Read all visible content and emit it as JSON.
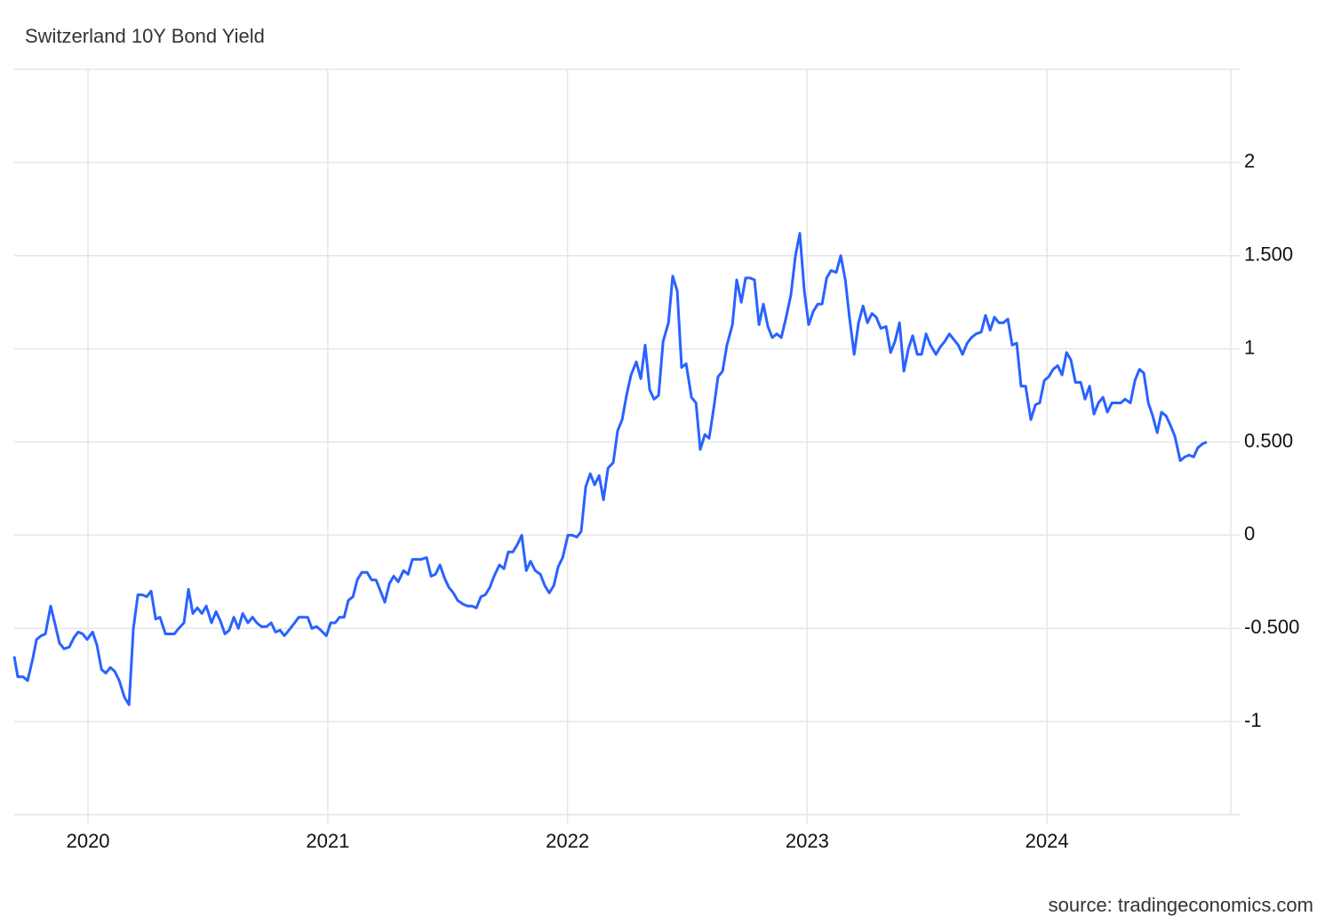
{
  "chart_data": {
    "type": "line",
    "title": "Switzerland 10Y Bond Yield",
    "source": "source: tradingeconomics.com",
    "color": "#2962ff",
    "grid": true,
    "xlim": [
      2019.692,
      2024.767
    ],
    "ylim": [
      -1.5,
      2.5
    ],
    "xticks": [
      2020,
      2021,
      2022,
      2023,
      2024
    ],
    "yticks": [
      -1,
      {
        "value": -0.5,
        "label": "-0.500"
      },
      0,
      {
        "value": 0.5,
        "label": "0.500"
      },
      1,
      {
        "value": 1.5,
        "label": "1.500"
      },
      2
    ],
    "x": [
      2019.692,
      2019.707,
      2019.729,
      2019.748,
      2019.77,
      2019.785,
      2019.804,
      2019.822,
      2019.844,
      2019.863,
      2019.881,
      2019.9,
      2019.922,
      2019.941,
      2019.959,
      2019.978,
      2019.996,
      2020.019,
      2020.037,
      2020.056,
      2020.074,
      2020.093,
      2020.111,
      2020.13,
      2020.152,
      2020.171,
      2020.189,
      2020.208,
      2020.226,
      2020.245,
      2020.263,
      2020.282,
      2020.3,
      2020.323,
      2020.341,
      2020.36,
      2020.378,
      2020.4,
      2020.419,
      2020.437,
      2020.456,
      2020.475,
      2020.493,
      2020.515,
      2020.534,
      2020.552,
      2020.571,
      2020.589,
      2020.608,
      2020.627,
      2020.645,
      2020.667,
      2020.686,
      2020.704,
      2020.723,
      2020.745,
      2020.764,
      2020.782,
      2020.801,
      2020.819,
      2020.838,
      2020.856,
      2020.879,
      2020.897,
      2020.916,
      2020.934,
      2020.953,
      2020.971,
      2020.994,
      2021.012,
      2021.031,
      2021.049,
      2021.068,
      2021.086,
      2021.105,
      2021.123,
      2021.142,
      2021.164,
      2021.183,
      2021.201,
      2021.22,
      2021.238,
      2021.257,
      2021.275,
      2021.294,
      2021.316,
      2021.335,
      2021.353,
      2021.372,
      2021.39,
      2021.412,
      2021.431,
      2021.449,
      2021.468,
      2021.487,
      2021.505,
      2021.524,
      2021.542,
      2021.564,
      2021.583,
      2021.601,
      2021.62,
      2021.639,
      2021.657,
      2021.676,
      2021.694,
      2021.716,
      2021.735,
      2021.753,
      2021.772,
      2021.791,
      2021.809,
      2021.828,
      2021.846,
      2021.865,
      2021.887,
      2021.905,
      2021.924,
      2021.943,
      2021.961,
      2021.98,
      2022.002,
      2022.02,
      2022.039,
      2022.057,
      2022.076,
      2022.095,
      2022.113,
      2022.132,
      2022.15,
      2022.169,
      2022.191,
      2022.209,
      2022.228,
      2022.246,
      2022.265,
      2022.287,
      2022.306,
      2022.324,
      2022.343,
      2022.361,
      2022.38,
      2022.399,
      2022.421,
      2022.439,
      2022.458,
      2022.476,
      2022.495,
      2022.517,
      2022.536,
      2022.554,
      2022.573,
      2022.591,
      2022.61,
      2022.628,
      2022.647,
      2022.665,
      2022.688,
      2022.706,
      2022.725,
      2022.743,
      2022.762,
      2022.78,
      2022.799,
      2022.817,
      2022.836,
      2022.854,
      2022.873,
      2022.892,
      2022.914,
      2022.932,
      2022.951,
      2022.969,
      2022.988,
      2023.006,
      2023.025,
      2023.044,
      2023.062,
      2023.081,
      2023.099,
      2023.121,
      2023.14,
      2023.159,
      2023.177,
      2023.196,
      2023.214,
      2023.233,
      2023.251,
      2023.27,
      2023.288,
      2023.307,
      2023.329,
      2023.348,
      2023.366,
      2023.385,
      2023.403,
      2023.422,
      2023.44,
      2023.459,
      2023.477,
      2023.496,
      2023.514,
      2023.537,
      2023.555,
      2023.574,
      2023.593,
      2023.611,
      2023.63,
      2023.648,
      2023.667,
      2023.685,
      2023.704,
      2023.726,
      2023.744,
      2023.763,
      2023.781,
      2023.8,
      2023.818,
      2023.837,
      2023.855,
      2023.874,
      2023.892,
      2023.911,
      2023.933,
      2023.952,
      2023.97,
      2023.989,
      2024.007,
      2024.026,
      2024.045,
      2024.063,
      2024.082,
      2024.1,
      2024.119,
      2024.141,
      2024.159,
      2024.178,
      2024.196,
      2024.215,
      2024.234,
      2024.252,
      2024.271,
      2024.289,
      2024.308,
      2024.326,
      2024.348,
      2024.367,
      2024.386,
      2024.404,
      2024.423,
      2024.441,
      2024.46,
      2024.478,
      2024.497,
      2024.515,
      2024.534,
      2024.556,
      2024.575,
      2024.593,
      2024.612,
      2024.63,
      2024.649,
      2024.667
    ],
    "values": [
      -0.65,
      -0.76,
      -0.76,
      -0.78,
      -0.66,
      -0.56,
      -0.54,
      -0.53,
      -0.38,
      -0.48,
      -0.58,
      -0.61,
      -0.6,
      -0.55,
      -0.52,
      -0.53,
      -0.56,
      -0.52,
      -0.59,
      -0.72,
      -0.74,
      -0.71,
      -0.73,
      -0.78,
      -0.87,
      -0.91,
      -0.5,
      -0.32,
      -0.32,
      -0.33,
      -0.3,
      -0.45,
      -0.44,
      -0.53,
      -0.53,
      -0.53,
      -0.5,
      -0.47,
      -0.29,
      -0.42,
      -0.39,
      -0.42,
      -0.38,
      -0.47,
      -0.41,
      -0.46,
      -0.53,
      -0.51,
      -0.44,
      -0.5,
      -0.42,
      -0.47,
      -0.44,
      -0.47,
      -0.49,
      -0.49,
      -0.47,
      -0.52,
      -0.51,
      -0.54,
      -0.51,
      -0.48,
      -0.44,
      -0.44,
      -0.44,
      -0.5,
      -0.49,
      -0.51,
      -0.54,
      -0.47,
      -0.47,
      -0.44,
      -0.44,
      -0.35,
      -0.33,
      -0.24,
      -0.2,
      -0.2,
      -0.24,
      -0.24,
      -0.3,
      -0.36,
      -0.26,
      -0.22,
      -0.25,
      -0.19,
      -0.21,
      -0.13,
      -0.13,
      -0.13,
      -0.12,
      -0.22,
      -0.21,
      -0.16,
      -0.23,
      -0.28,
      -0.31,
      -0.35,
      -0.37,
      -0.38,
      -0.38,
      -0.39,
      -0.33,
      -0.32,
      -0.28,
      -0.22,
      -0.16,
      -0.18,
      -0.09,
      -0.09,
      -0.05,
      0,
      -0.19,
      -0.14,
      -0.19,
      -0.21,
      -0.27,
      -0.31,
      -0.27,
      -0.17,
      -0.12,
      0,
      0,
      -0.01,
      0.02,
      0.26,
      0.33,
      0.27,
      0.32,
      0.19,
      0.36,
      0.39,
      0.56,
      0.62,
      0.75,
      0.86,
      0.93,
      0.84,
      1.02,
      0.78,
      0.73,
      0.75,
      1.04,
      1.14,
      1.39,
      1.31,
      0.9,
      0.92,
      0.74,
      0.71,
      0.46,
      0.54,
      0.52,
      0.68,
      0.85,
      0.88,
      1.02,
      1.13,
      1.37,
      1.25,
      1.38,
      1.38,
      1.37,
      1.13,
      1.24,
      1.12,
      1.06,
      1.08,
      1.06,
      1.18,
      1.29,
      1.5,
      1.62,
      1.31,
      1.13,
      1.2,
      1.24,
      1.24,
      1.38,
      1.42,
      1.41,
      1.5,
      1.37,
      1.16,
      0.97,
      1.14,
      1.23,
      1.14,
      1.19,
      1.17,
      1.11,
      1.12,
      0.98,
      1.04,
      1.14,
      0.88,
      1.0,
      1.07,
      0.97,
      0.97,
      1.08,
      1.02,
      0.97,
      1.01,
      1.04,
      1.08,
      1.05,
      1.02,
      0.97,
      1.03,
      1.06,
      1.08,
      1.09,
      1.18,
      1.1,
      1.17,
      1.14,
      1.14,
      1.16,
      1.02,
      1.03,
      0.8,
      0.8,
      0.62,
      0.7,
      0.71,
      0.83,
      0.85,
      0.89,
      0.91,
      0.86,
      0.98,
      0.94,
      0.82,
      0.82,
      0.73,
      0.8,
      0.65,
      0.71,
      0.74,
      0.66,
      0.71,
      0.71,
      0.71,
      0.73,
      0.71,
      0.83,
      0.89,
      0.87,
      0.71,
      0.64,
      0.55,
      0.66,
      0.64,
      0.59,
      0.53,
      0.4,
      0.42,
      0.43,
      0.42,
      0.47,
      0.49,
      0.5
    ]
  }
}
